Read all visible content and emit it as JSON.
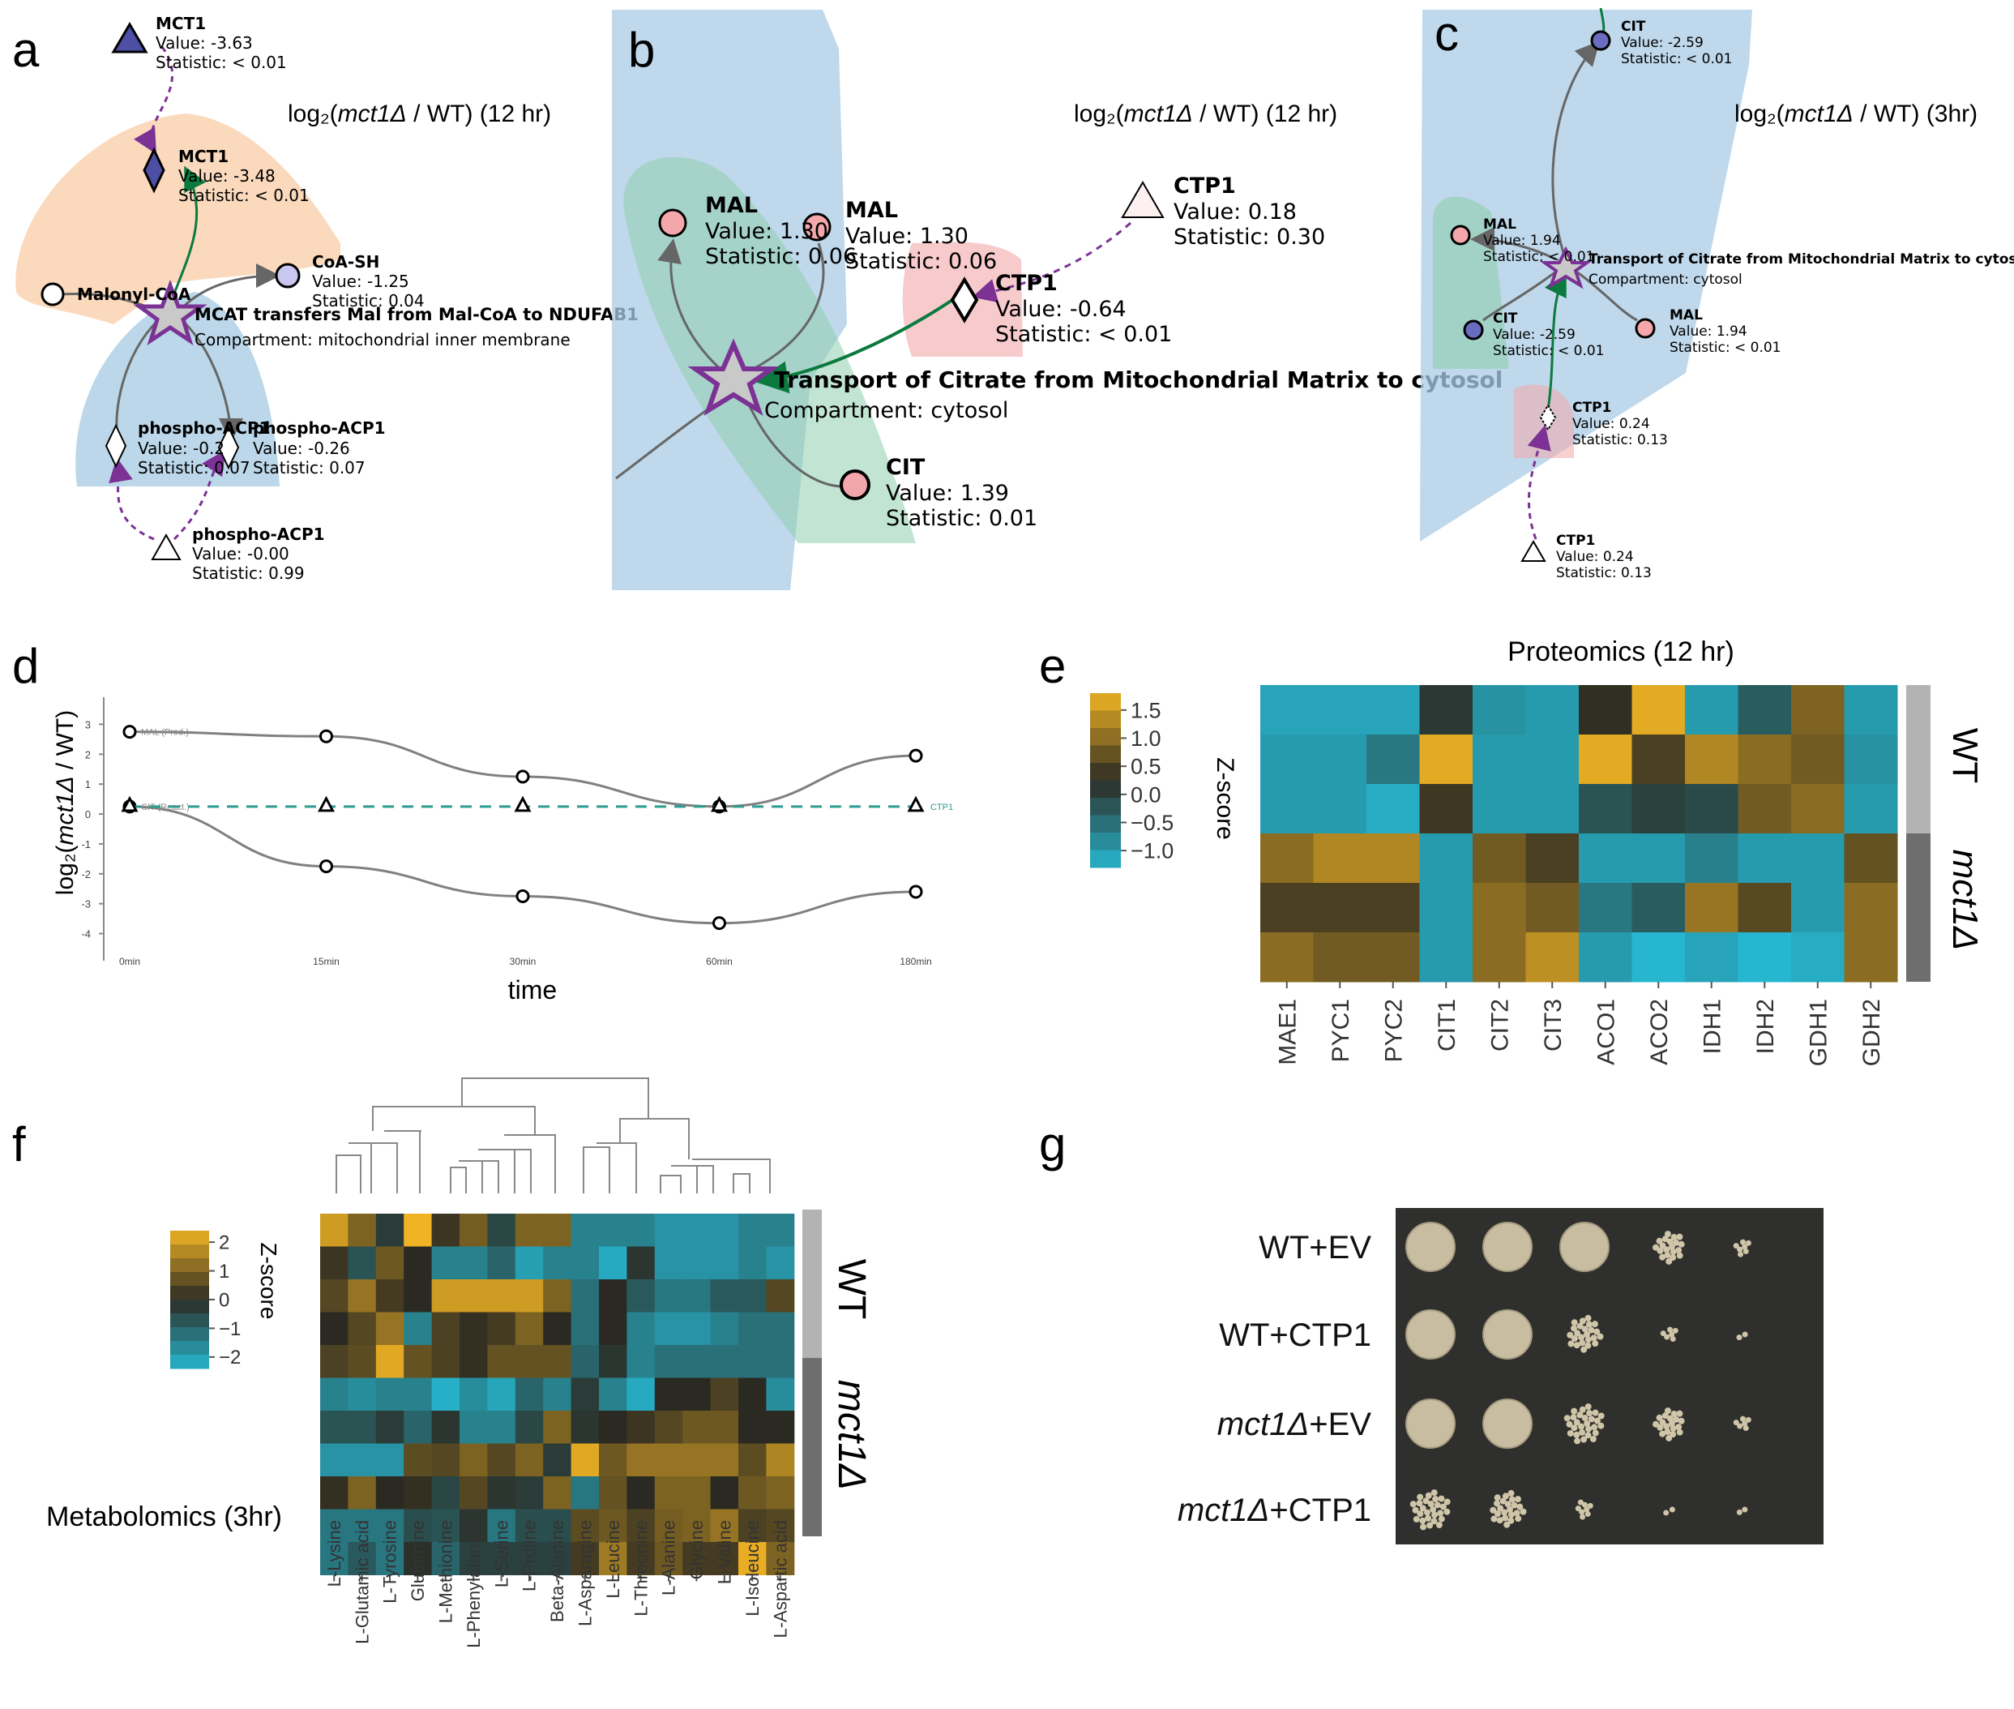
{
  "panel_letters": {
    "a": "a",
    "b": "b",
    "c": "c",
    "d": "d",
    "e": "e",
    "f": "f",
    "g": "g"
  },
  "panel_a": {
    "title_pre": "log₂(",
    "title_it": "mct1Δ",
    "title_post": " / WT) (12 hr)",
    "nodes": [
      {
        "name": "MCT1",
        "value": "Value: -3.63",
        "stat": "Statistic: < 0.01"
      },
      {
        "name": "MCT1",
        "value": "Value: -3.48",
        "stat": "Statistic: < 0.01"
      },
      {
        "name": "CoA-SH",
        "value": "Value: -1.25",
        "stat": "Statistic: 0.04"
      },
      {
        "name": "Malonyl-CoA"
      },
      {
        "name": "phospho-ACP1",
        "value": "Value: -0.26",
        "stat": "Statistic: 0.07"
      },
      {
        "name": "phospho-ACP1",
        "value": "Value: -0.2",
        "stat": "Statistic: 0.07"
      },
      {
        "name": "phospho-ACP1",
        "value": "Value: -0.00",
        "stat": "Statistic: 0.99"
      }
    ],
    "reaction": "MCAT transfers Mal from Mal-CoA to NDUFAB1",
    "compartment": "Compartment: mitochondrial inner membrane"
  },
  "panel_b": {
    "title_pre": "log₂(",
    "title_it": "mct1Δ",
    "title_post": " / WT) (12 hr)",
    "nodes": [
      {
        "name": "MAL",
        "value": "Value: 1.30",
        "stat": "Statistic: 0.06"
      },
      {
        "name": "MAL",
        "value": "Value: 1.30",
        "stat": "Statistic: 0.06"
      },
      {
        "name": "CTP1",
        "value": "Value: 0.18",
        "stat": "Statistic: 0.30"
      },
      {
        "name": "CTP1",
        "value": "Value: -0.64",
        "stat": "Statistic: < 0.01"
      },
      {
        "name": "CIT",
        "value": "Value: 1.39",
        "stat": "Statistic: 0.01"
      }
    ],
    "reaction": "Transport of Citrate from Mitochondrial Matrix to cytosol",
    "compartment": "Compartment: cytosol"
  },
  "panel_c": {
    "title_pre": "log₂(",
    "title_it": "mct1Δ",
    "title_post": " / WT) (3hr)",
    "nodes": [
      {
        "name": "CIT",
        "value": "Value: -2.59",
        "stat": "Statistic: < 0.01"
      },
      {
        "name": "MAL",
        "value": "Value: 1.94",
        "stat": "Statistic: < 0.01"
      },
      {
        "name": "CIT",
        "value": "Value: -2.59",
        "stat": "Statistic: < 0.01"
      },
      {
        "name": "MAL",
        "value": "Value: 1.94",
        "stat": "Statistic: < 0.01"
      },
      {
        "name": "CTP1",
        "value": "Value: 0.24",
        "stat": "Statistic: 0.13"
      },
      {
        "name": "CTP1",
        "value": "Value: 0.24",
        "stat": "Statistic: 0.13"
      }
    ],
    "reaction": "Transport of Citrate from Mitochondrial Matrix to cytosol",
    "compartment": "Compartment: cytosol"
  },
  "chart_data": [
    {
      "type": "line",
      "panel": "d",
      "ylabel_pre": "log₂(",
      "ylabel_it": "mct1Δ",
      "ylabel_post": " / WT)",
      "xlabel": "time",
      "categories": [
        "0min",
        "15min",
        "30min",
        "60min",
        "180min"
      ],
      "yticks": [
        "3",
        "2",
        "1",
        "0",
        "-1",
        "-2",
        "-3",
        "-4"
      ],
      "ylim": [
        -4.5,
        3.5
      ],
      "series": [
        {
          "name": "MAL (Prod.)",
          "values": [
            2.75,
            2.6,
            1.25,
            0.25,
            1.95
          ],
          "color": "#808080"
        },
        {
          "name": "CIT (React.)",
          "values": [
            0.25,
            -1.75,
            -2.75,
            -3.65,
            -2.6
          ],
          "color": "#808080"
        },
        {
          "name": "CTP1",
          "values": [
            0.25,
            0.25,
            0.25,
            0.25,
            0.25
          ],
          "color": "#2a9d8f"
        }
      ]
    },
    {
      "type": "heatmap",
      "panel": "e",
      "title": "Proteomics (12 hr)",
      "columns": [
        "MAE1",
        "PYC1",
        "PYC2",
        "CIT1",
        "CIT2",
        "CIT3",
        "ACO1",
        "ACO2",
        "IDH1",
        "IDH2",
        "GDH1",
        "GDH2"
      ],
      "row_groups": [
        "WT",
        "mct1Δ"
      ],
      "colorbar_label": "Z-score",
      "colorbar_ticks": [
        "1.5",
        "1.0",
        "0.5",
        "0.0",
        "−0.5",
        "−1.0"
      ],
      "zlim": [
        -1.3,
        1.8
      ],
      "values": [
        [
          -1.1,
          -1.1,
          -1.1,
          0.1,
          -0.9,
          -1.0,
          0.3,
          1.7,
          -1.0,
          -0.3,
          0.9,
          -1.0
        ],
        [
          -1.0,
          -1.0,
          -0.6,
          1.7,
          -1.0,
          -1.0,
          1.7,
          0.5,
          1.3,
          1.0,
          0.8,
          -0.9
        ],
        [
          -1.0,
          -1.0,
          -1.2,
          0.4,
          -1.0,
          -1.0,
          -0.2,
          0.0,
          -0.1,
          0.8,
          1.0,
          -1.0
        ],
        [
          1.0,
          1.3,
          1.3,
          -1.0,
          0.8,
          0.5,
          -1.0,
          -1.0,
          -0.7,
          -1.0,
          -1.0,
          0.7
        ],
        [
          0.5,
          0.5,
          0.5,
          -1.0,
          1.0,
          0.8,
          -0.6,
          -0.3,
          1.1,
          0.6,
          -1.0,
          1.0
        ],
        [
          1.0,
          0.8,
          0.8,
          -1.0,
          1.0,
          1.4,
          -1.0,
          -1.3,
          -1.1,
          -1.3,
          -1.2,
          1.0
        ]
      ]
    },
    {
      "type": "heatmap",
      "panel": "f",
      "title": "Metabolomics (3hr)",
      "columns": [
        "L-Lysine",
        "L-Glutamic acid",
        "L-Tyrosine",
        "Glutamine",
        "L-Methionine",
        "L-Phenylalanine",
        "L-Serine",
        "L-Proline",
        "Beta-Alanine",
        "L-Asparagine",
        "L-Leucine",
        "L-Threonine",
        "L-Alanine",
        "Glycine",
        "L-Valine",
        "L-Isoleucine",
        "L-Aspartic acid"
      ],
      "row_groups": [
        "WT",
        "mct1Δ"
      ],
      "colorbar_label": "Z-score",
      "colorbar_ticks": [
        "2",
        "1",
        "0",
        "−1",
        "−2"
      ],
      "zlim": [
        -2.4,
        2.4
      ],
      "values": [
        [
          2.0,
          1.0,
          -0.3,
          2.4,
          0.2,
          0.9,
          -0.5,
          1.0,
          1.0,
          -1.5,
          -1.5,
          -1.5,
          -1.8,
          -1.8,
          -1.8,
          -1.5,
          -1.5
        ],
        [
          0.2,
          -0.7,
          0.8,
          0.0,
          -1.5,
          -1.5,
          -1.0,
          -2.0,
          -1.5,
          -1.5,
          -2.2,
          -0.2,
          -1.8,
          -1.8,
          -1.8,
          -1.5,
          -1.8
        ],
        [
          0.5,
          1.3,
          0.3,
          0.0,
          2.0,
          2.0,
          2.0,
          2.0,
          1.0,
          -1.2,
          0.0,
          -0.8,
          -1.3,
          -1.3,
          -0.8,
          -0.8,
          0.5
        ],
        [
          0.0,
          0.5,
          1.3,
          -1.5,
          0.4,
          0.1,
          0.3,
          1.0,
          0.0,
          -1.2,
          0.0,
          -1.5,
          -1.8,
          -1.8,
          -1.5,
          -1.2,
          -1.2
        ],
        [
          0.4,
          0.6,
          2.2,
          0.7,
          0.4,
          0.1,
          0.7,
          0.7,
          0.7,
          -1.0,
          -0.2,
          -1.5,
          -1.2,
          -1.2,
          -1.2,
          -1.2,
          -1.2
        ],
        [
          -1.5,
          -1.7,
          -1.5,
          -1.5,
          -2.3,
          -1.7,
          -2.1,
          -1.0,
          -1.5,
          -0.3,
          -1.5,
          -2.2,
          0.0,
          0.0,
          0.4,
          0.0,
          -1.7
        ],
        [
          -0.7,
          -0.7,
          -0.3,
          -1.0,
          -0.2,
          -1.5,
          -1.5,
          -0.5,
          1.0,
          -0.2,
          0.0,
          0.2,
          0.5,
          0.8,
          0.8,
          0.0,
          0.0
        ],
        [
          -1.8,
          -1.8,
          -1.8,
          0.6,
          0.5,
          1.0,
          0.5,
          1.0,
          -0.3,
          2.2,
          0.8,
          1.3,
          1.3,
          1.3,
          1.3,
          0.6,
          1.6
        ],
        [
          0.1,
          1.0,
          0.0,
          0.1,
          -0.5,
          0.5,
          -0.2,
          -0.3,
          1.0,
          -1.3,
          0.7,
          0.0,
          1.0,
          1.0,
          0.0,
          0.8,
          1.0
        ],
        [
          -1.3,
          -1.3,
          -1.3,
          -0.6,
          -0.7,
          -0.2,
          -1.3,
          -0.6,
          -0.6,
          0.6,
          0.8,
          0.4,
          0.9,
          1.0,
          1.3,
          0.4,
          0.5
        ],
        [
          -1.3,
          -0.8,
          -1.3,
          -0.1,
          -1.0,
          -0.4,
          -0.4,
          -0.4,
          -0.4,
          0.3,
          1.4,
          0.3,
          0.8,
          0.3,
          0.3,
          2.3,
          1.0
        ]
      ]
    }
  ],
  "panel_g": {
    "rows": [
      {
        "pre": "WT",
        "it": "",
        "post": "+EV",
        "colonies": [
          1,
          1,
          0.85,
          0.5,
          0.18
        ]
      },
      {
        "pre": "WT",
        "it": "",
        "post": "+CTP1",
        "colonies": [
          1,
          0.9,
          0.6,
          0.15,
          0.04
        ]
      },
      {
        "pre": "",
        "it": "mct1Δ",
        "post": "+EV",
        "colonies": [
          1,
          0.95,
          0.7,
          0.5,
          0.15
        ]
      },
      {
        "pre": "",
        "it": "mct1Δ",
        "post": "+CTP1",
        "colonies": [
          0.7,
          0.6,
          0.2,
          0.06,
          0.02
        ]
      }
    ]
  },
  "colors": {
    "purple": "#7b3294",
    "green": "#0b7a3e",
    "high": "#f0b323",
    "mid": "#2b2a22",
    "low": "#26b6cf",
    "wt_bar": "#b3b3b3",
    "ko_bar": "#6e6e6e",
    "plate": "#2f2f2d"
  }
}
